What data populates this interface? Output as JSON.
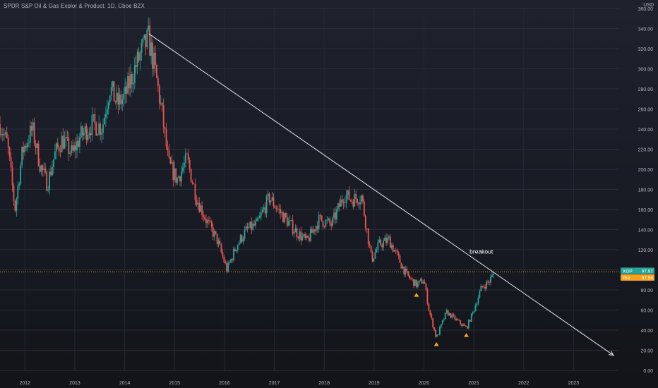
{
  "header": {
    "symbol_title": "SPDR S&P Oil & Gas Explor & Product, 1D, Cboe BZX",
    "currency": "USD"
  },
  "colors": {
    "up": "#26a69a",
    "down": "#ef5350",
    "price_line": "#f7a21b",
    "label_ticker_bg": "#26a69a",
    "label_pre_bg": "#f7a21b",
    "trendline": "#d1d4dc",
    "marker": "#f7a21b"
  },
  "chart_data": {
    "type": "candlestick",
    "title": "SPDR S&P Oil & Gas Explor & Product, 1D, Cboe BZX",
    "ylabel": "USD",
    "ylim": [
      0,
      360
    ],
    "xlim": [
      2011.5,
      2023.9
    ],
    "grid": true,
    "y_ticks": [
      "360.00",
      "340.00",
      "320.00",
      "300.00",
      "280.00",
      "260.00",
      "240.00",
      "220.00",
      "200.00",
      "180.00",
      "160.00",
      "140.00",
      "120.00",
      "100.00",
      "80.00",
      "60.00",
      "40.00",
      "20.00",
      "0.00"
    ],
    "x_ticks": [
      "2012",
      "2013",
      "2014",
      "2015",
      "2016",
      "2017",
      "2018",
      "2019",
      "2020",
      "2021",
      "2022",
      "2023"
    ],
    "price_series_keypoints": [
      [
        2011.5,
        245
      ],
      [
        2011.65,
        225
      ],
      [
        2011.8,
        160
      ],
      [
        2011.95,
        218
      ],
      [
        2012.15,
        240
      ],
      [
        2012.3,
        205
      ],
      [
        2012.45,
        185
      ],
      [
        2012.6,
        215
      ],
      [
        2012.75,
        230
      ],
      [
        2012.95,
        215
      ],
      [
        2013.1,
        232
      ],
      [
        2013.35,
        245
      ],
      [
        2013.55,
        242
      ],
      [
        2013.7,
        282
      ],
      [
        2013.85,
        265
      ],
      [
        2014.0,
        272
      ],
      [
        2014.2,
        300
      ],
      [
        2014.35,
        318
      ],
      [
        2014.48,
        330
      ],
      [
        2014.62,
        295
      ],
      [
        2014.75,
        255
      ],
      [
        2014.88,
        205
      ],
      [
        2015.05,
        190
      ],
      [
        2015.25,
        210
      ],
      [
        2015.45,
        170
      ],
      [
        2015.65,
        148
      ],
      [
        2015.85,
        130
      ],
      [
        2016.05,
        100
      ],
      [
        2016.25,
        125
      ],
      [
        2016.45,
        140
      ],
      [
        2016.65,
        145
      ],
      [
        2016.9,
        172
      ],
      [
        2017.15,
        155
      ],
      [
        2017.4,
        140
      ],
      [
        2017.65,
        128
      ],
      [
        2017.9,
        150
      ],
      [
        2018.15,
        145
      ],
      [
        2018.4,
        175
      ],
      [
        2018.55,
        170
      ],
      [
        2018.75,
        173
      ],
      [
        2018.95,
        110
      ],
      [
        2019.1,
        125
      ],
      [
        2019.3,
        130
      ],
      [
        2019.5,
        110
      ],
      [
        2019.65,
        95
      ],
      [
        2019.85,
        85
      ],
      [
        2020.0,
        90
      ],
      [
        2020.1,
        60
      ],
      [
        2020.25,
        32
      ],
      [
        2020.45,
        58
      ],
      [
        2020.65,
        50
      ],
      [
        2020.85,
        42
      ],
      [
        2021.0,
        60
      ],
      [
        2021.15,
        82
      ],
      [
        2021.3,
        88
      ],
      [
        2021.42,
        97.97
      ]
    ],
    "series": [
      {
        "name": "XOP",
        "last": 97.97
      },
      {
        "name": "Pre",
        "last": 97.96
      }
    ],
    "last_price_labels": [
      {
        "label": "XOP",
        "value": "97.97"
      },
      {
        "label": "Pre",
        "value": "97.96"
      }
    ],
    "trendline": {
      "from": [
        2014.48,
        335
      ],
      "to": [
        2023.8,
        15
      ]
    },
    "annotations": [
      {
        "text": "breakout",
        "x": 2021.15,
        "y": 116
      }
    ],
    "markers": [
      {
        "x": 2019.85,
        "y": 75,
        "shape": "triangle-up"
      },
      {
        "x": 2020.25,
        "y": 26,
        "shape": "triangle-up"
      },
      {
        "x": 2020.85,
        "y": 35,
        "shape": "triangle-up"
      }
    ]
  }
}
